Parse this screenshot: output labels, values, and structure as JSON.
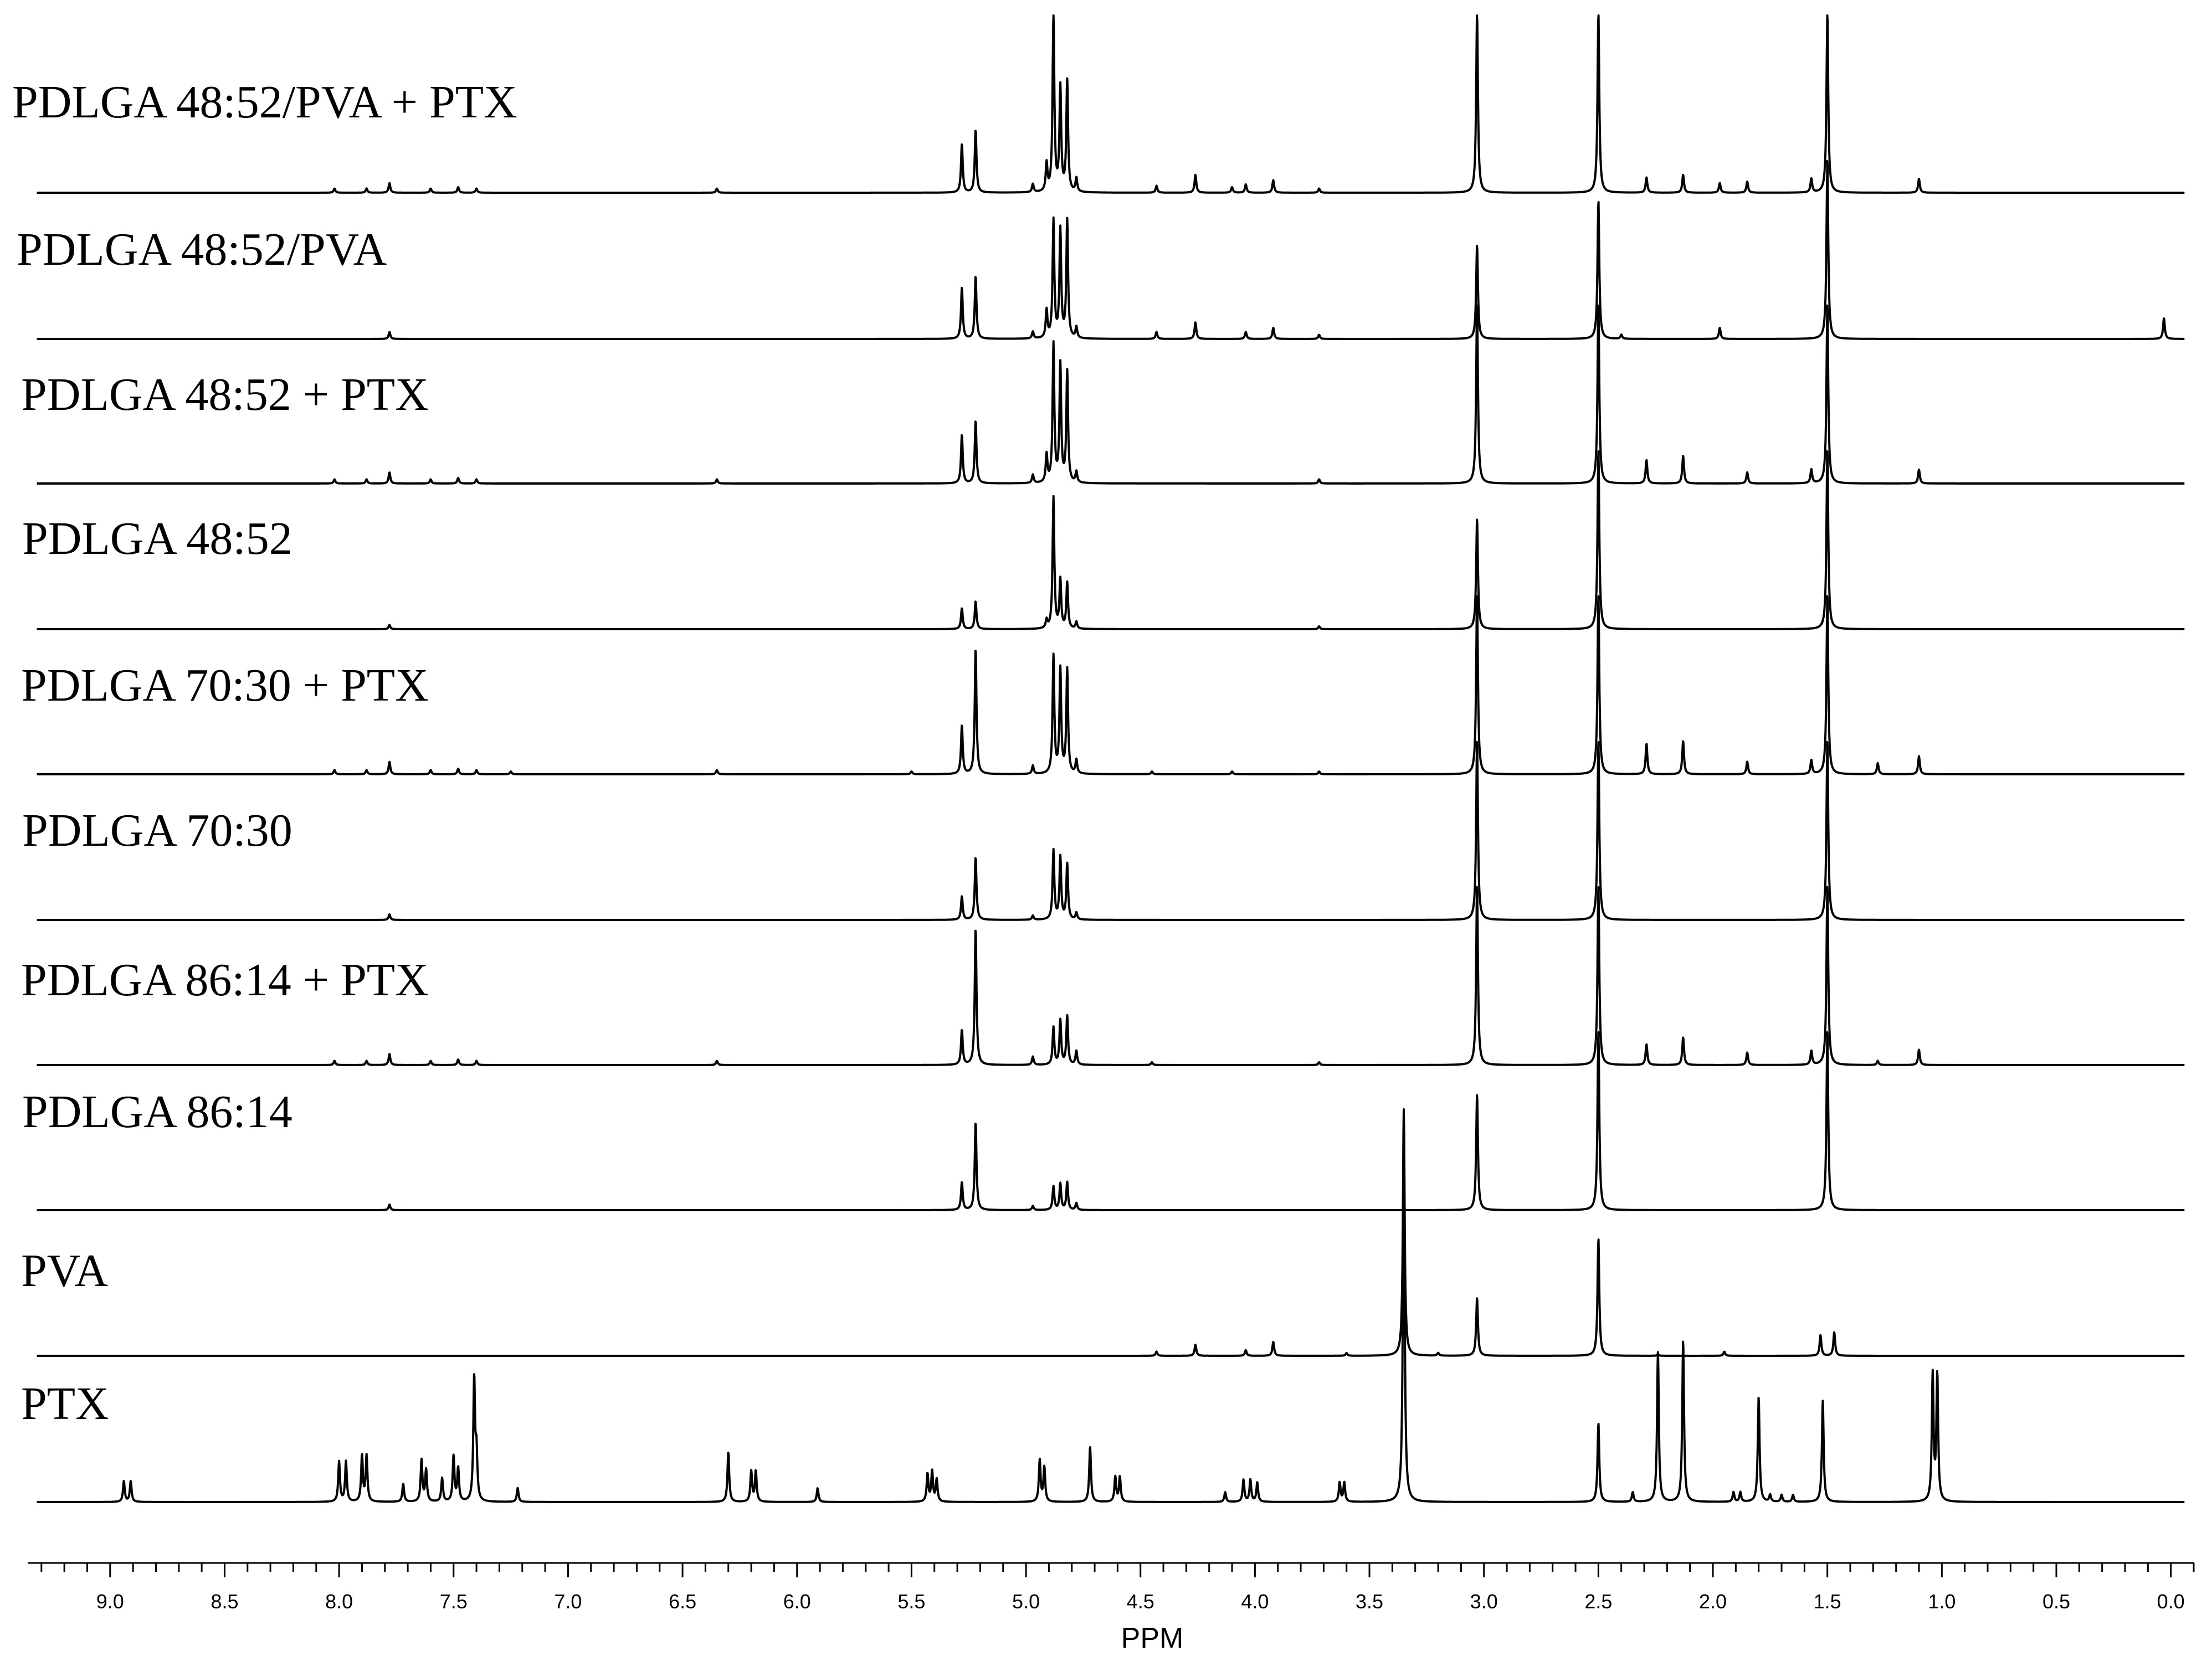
{
  "chart_data": {
    "type": "line",
    "title": "",
    "xlabel": "PPM",
    "ylabel": "",
    "x_reversed": true,
    "xlim": [
      9.36,
      -0.1
    ],
    "x_ticks": [
      9.0,
      8.5,
      8.0,
      7.5,
      7.0,
      6.5,
      6.0,
      5.5,
      5.0,
      4.5,
      4.0,
      3.5,
      3.0,
      2.5,
      2.0,
      1.5,
      1.0,
      0.5,
      0.0
    ],
    "x_tick_labels": [
      "9.0",
      "8.5",
      "8.0",
      "7.5",
      "7.0",
      "6.5",
      "6.0",
      "5.5",
      "5.0",
      "4.5",
      "4.0",
      "3.5",
      "3.0",
      "2.5",
      "2.0",
      "1.5",
      "1.0",
      "0.5",
      "0.0"
    ],
    "x_minor_step": 0.1,
    "stacked": true,
    "series": [
      {
        "name": "PDLGA 48:52/PVA + PTX",
        "peaks": [
          [
            8.02,
            0.03
          ],
          [
            7.88,
            0.03
          ],
          [
            7.78,
            0.07
          ],
          [
            7.6,
            0.03
          ],
          [
            7.48,
            0.04
          ],
          [
            7.4,
            0.03
          ],
          [
            6.35,
            0.03
          ],
          [
            5.28,
            0.35
          ],
          [
            5.22,
            0.45
          ],
          [
            4.97,
            0.06
          ],
          [
            4.91,
            0.2
          ],
          [
            4.88,
            1.3
          ],
          [
            4.85,
            0.75
          ],
          [
            4.82,
            0.8
          ],
          [
            4.78,
            0.1
          ],
          [
            4.43,
            0.05
          ],
          [
            4.26,
            0.13
          ],
          [
            4.1,
            0.04
          ],
          [
            4.04,
            0.06
          ],
          [
            3.92,
            0.09
          ],
          [
            3.72,
            0.03
          ],
          [
            3.03,
            1.3
          ],
          [
            2.5,
            1.3
          ],
          [
            2.29,
            0.11
          ],
          [
            2.13,
            0.13
          ],
          [
            1.97,
            0.07
          ],
          [
            1.85,
            0.08
          ],
          [
            1.57,
            0.1
          ],
          [
            1.5,
            1.3
          ],
          [
            1.1,
            0.1
          ]
        ]
      },
      {
        "name": "PDLGA 48:52/PVA",
        "peaks": [
          [
            7.78,
            0.05
          ],
          [
            5.28,
            0.37
          ],
          [
            5.22,
            0.45
          ],
          [
            4.97,
            0.05
          ],
          [
            4.91,
            0.2
          ],
          [
            4.88,
            0.85
          ],
          [
            4.85,
            0.78
          ],
          [
            4.82,
            0.85
          ],
          [
            4.78,
            0.08
          ],
          [
            4.43,
            0.05
          ],
          [
            4.26,
            0.12
          ],
          [
            4.04,
            0.05
          ],
          [
            3.92,
            0.08
          ],
          [
            3.72,
            0.03
          ],
          [
            3.03,
            0.68
          ],
          [
            2.5,
            1.0
          ],
          [
            2.4,
            0.03
          ],
          [
            1.97,
            0.08
          ],
          [
            1.5,
            1.3
          ],
          [
            0.03,
            0.15
          ]
        ]
      },
      {
        "name": "PDLGA 48:52 + PTX",
        "peaks": [
          [
            8.02,
            0.03
          ],
          [
            7.88,
            0.03
          ],
          [
            7.78,
            0.08
          ],
          [
            7.6,
            0.03
          ],
          [
            7.48,
            0.04
          ],
          [
            7.4,
            0.03
          ],
          [
            6.35,
            0.03
          ],
          [
            5.28,
            0.35
          ],
          [
            5.22,
            0.45
          ],
          [
            4.97,
            0.06
          ],
          [
            4.91,
            0.2
          ],
          [
            4.88,
            1.0
          ],
          [
            4.85,
            0.85
          ],
          [
            4.82,
            0.8
          ],
          [
            4.78,
            0.08
          ],
          [
            3.72,
            0.03
          ],
          [
            3.03,
            1.3
          ],
          [
            2.5,
            1.3
          ],
          [
            2.29,
            0.17
          ],
          [
            2.13,
            0.2
          ],
          [
            1.85,
            0.08
          ],
          [
            1.57,
            0.1
          ],
          [
            1.5,
            1.3
          ],
          [
            1.1,
            0.1
          ]
        ]
      },
      {
        "name": "PDLGA 48:52",
        "peaks": [
          [
            7.78,
            0.03
          ],
          [
            5.28,
            0.15
          ],
          [
            5.22,
            0.2
          ],
          [
            4.91,
            0.06
          ],
          [
            4.88,
            0.95
          ],
          [
            4.85,
            0.35
          ],
          [
            4.82,
            0.33
          ],
          [
            4.78,
            0.05
          ],
          [
            3.72,
            0.02
          ],
          [
            3.03,
            0.8
          ],
          [
            2.5,
            1.3
          ],
          [
            1.5,
            1.3
          ]
        ]
      },
      {
        "name": "PDLGA 70:30 + PTX",
        "peaks": [
          [
            8.02,
            0.03
          ],
          [
            7.88,
            0.03
          ],
          [
            7.78,
            0.09
          ],
          [
            7.6,
            0.03
          ],
          [
            7.48,
            0.04
          ],
          [
            7.4,
            0.03
          ],
          [
            7.25,
            0.02
          ],
          [
            6.35,
            0.03
          ],
          [
            5.5,
            0.02
          ],
          [
            5.28,
            0.35
          ],
          [
            5.22,
            0.9
          ],
          [
            4.97,
            0.06
          ],
          [
            4.88,
            0.85
          ],
          [
            4.85,
            0.75
          ],
          [
            4.82,
            0.75
          ],
          [
            4.78,
            0.1
          ],
          [
            4.45,
            0.02
          ],
          [
            4.1,
            0.02
          ],
          [
            3.72,
            0.02
          ],
          [
            3.03,
            1.3
          ],
          [
            2.5,
            1.3
          ],
          [
            2.29,
            0.22
          ],
          [
            2.13,
            0.24
          ],
          [
            1.85,
            0.09
          ],
          [
            1.57,
            0.1
          ],
          [
            1.5,
            1.3
          ],
          [
            1.28,
            0.08
          ],
          [
            1.1,
            0.13
          ]
        ]
      },
      {
        "name": "PDLGA 70:30",
        "peaks": [
          [
            7.78,
            0.04
          ],
          [
            5.28,
            0.17
          ],
          [
            5.22,
            0.45
          ],
          [
            4.97,
            0.03
          ],
          [
            4.88,
            0.5
          ],
          [
            4.85,
            0.45
          ],
          [
            4.82,
            0.4
          ],
          [
            4.78,
            0.05
          ],
          [
            3.03,
            1.3
          ],
          [
            2.5,
            1.3
          ],
          [
            1.5,
            1.3
          ]
        ]
      },
      {
        "name": "PDLGA 86:14 + PTX",
        "peaks": [
          [
            8.02,
            0.03
          ],
          [
            7.88,
            0.03
          ],
          [
            7.78,
            0.08
          ],
          [
            7.6,
            0.03
          ],
          [
            7.48,
            0.04
          ],
          [
            7.4,
            0.03
          ],
          [
            6.35,
            0.03
          ],
          [
            5.28,
            0.25
          ],
          [
            5.22,
            0.98
          ],
          [
            4.97,
            0.06
          ],
          [
            4.88,
            0.27
          ],
          [
            4.85,
            0.32
          ],
          [
            4.82,
            0.35
          ],
          [
            4.78,
            0.1
          ],
          [
            4.45,
            0.02
          ],
          [
            3.72,
            0.02
          ],
          [
            3.03,
            1.3
          ],
          [
            2.5,
            1.3
          ],
          [
            2.29,
            0.15
          ],
          [
            2.13,
            0.2
          ],
          [
            1.85,
            0.09
          ],
          [
            1.57,
            0.1
          ],
          [
            1.5,
            1.3
          ],
          [
            1.28,
            0.03
          ],
          [
            1.1,
            0.11
          ]
        ]
      },
      {
        "name": "PDLGA 86:14",
        "peaks": [
          [
            7.78,
            0.04
          ],
          [
            5.28,
            0.2
          ],
          [
            5.22,
            0.63
          ],
          [
            4.97,
            0.03
          ],
          [
            4.88,
            0.17
          ],
          [
            4.85,
            0.19
          ],
          [
            4.82,
            0.2
          ],
          [
            4.78,
            0.05
          ],
          [
            3.03,
            0.84
          ],
          [
            2.5,
            1.3
          ],
          [
            1.5,
            1.3
          ]
        ]
      },
      {
        "name": "PVA",
        "peaks": [
          [
            4.43,
            0.03
          ],
          [
            4.26,
            0.08
          ],
          [
            4.04,
            0.04
          ],
          [
            3.92,
            0.1
          ],
          [
            3.6,
            0.02
          ],
          [
            3.35,
            1.78
          ],
          [
            3.2,
            0.02
          ],
          [
            3.03,
            0.42
          ],
          [
            2.5,
            0.85
          ],
          [
            2.24,
            0.01
          ],
          [
            1.95,
            0.03
          ],
          [
            1.53,
            0.15
          ],
          [
            1.47,
            0.17
          ]
        ]
      },
      {
        "name": "PTX",
        "peaks": [
          [
            8.94,
            0.15
          ],
          [
            8.91,
            0.15
          ],
          [
            8.0,
            0.29
          ],
          [
            7.97,
            0.29
          ],
          [
            7.9,
            0.33
          ],
          [
            7.88,
            0.33
          ],
          [
            7.72,
            0.13
          ],
          [
            7.64,
            0.3
          ],
          [
            7.62,
            0.23
          ],
          [
            7.55,
            0.17
          ],
          [
            7.5,
            0.33
          ],
          [
            7.48,
            0.24
          ],
          [
            7.41,
            0.88
          ],
          [
            7.4,
            0.33
          ],
          [
            7.22,
            0.1
          ],
          [
            6.3,
            0.36
          ],
          [
            6.2,
            0.22
          ],
          [
            6.18,
            0.22
          ],
          [
            5.91,
            0.1
          ],
          [
            5.43,
            0.2
          ],
          [
            5.41,
            0.22
          ],
          [
            5.39,
            0.16
          ],
          [
            4.94,
            0.3
          ],
          [
            4.92,
            0.25
          ],
          [
            4.72,
            0.4
          ],
          [
            4.61,
            0.18
          ],
          [
            4.59,
            0.18
          ],
          [
            4.13,
            0.07
          ],
          [
            4.05,
            0.16
          ],
          [
            4.02,
            0.16
          ],
          [
            3.99,
            0.14
          ],
          [
            3.63,
            0.14
          ],
          [
            3.61,
            0.14
          ],
          [
            3.35,
            2.7
          ],
          [
            2.5,
            0.57
          ],
          [
            2.35,
            0.07
          ],
          [
            2.24,
            1.08
          ],
          [
            2.13,
            1.17
          ],
          [
            1.91,
            0.07
          ],
          [
            1.88,
            0.07
          ],
          [
            1.8,
            0.76
          ],
          [
            1.75,
            0.05
          ],
          [
            1.7,
            0.05
          ],
          [
            1.65,
            0.05
          ],
          [
            1.52,
            0.73
          ],
          [
            1.04,
            0.91
          ],
          [
            1.02,
            0.91
          ]
        ]
      }
    ]
  }
}
